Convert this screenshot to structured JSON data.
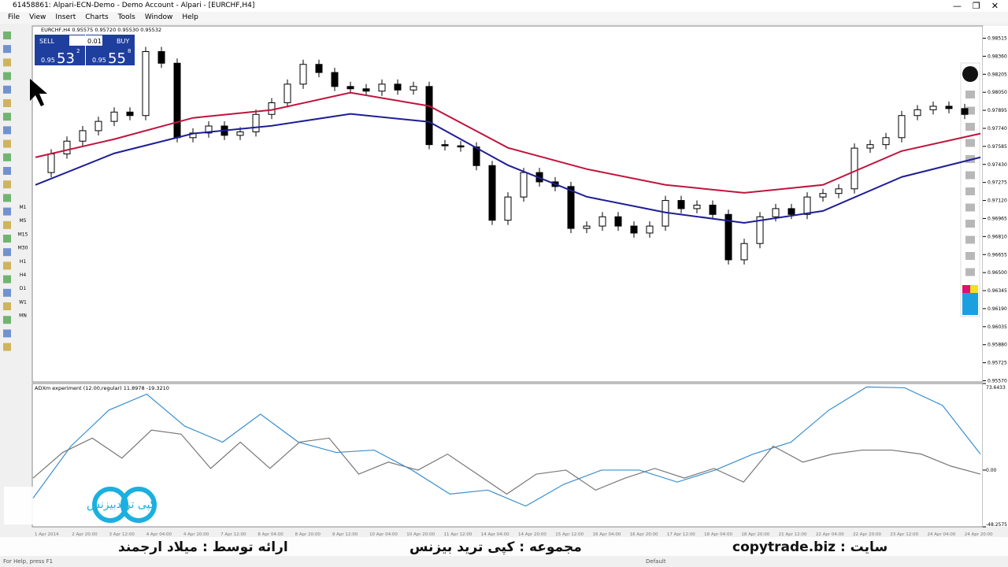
{
  "window_title": "61458861: Alpari-ECN-Demo - Demo Account - Alpari - [EURCHF,H4]",
  "menu": [
    "File",
    "View",
    "Insert",
    "Charts",
    "Tools",
    "Window",
    "Help"
  ],
  "timeframes": [
    "M1",
    "M5",
    "M15",
    "M30",
    "H1",
    "H4",
    "D1",
    "W1",
    "MN"
  ],
  "trade_panel": {
    "sell": "SELL",
    "buy": "BUY",
    "lot": "0.01",
    "sell_prefix": "0.95",
    "sell_big": "53",
    "sell_small": "2",
    "buy_prefix": "0.95",
    "buy_big": "55",
    "buy_small": "8"
  },
  "chart": {
    "type": "candlestick",
    "label": "EURCHF,H4  0.95575 0.95720 0.95530 0.95532",
    "ylim": [
      0.9556,
      0.9862
    ],
    "yticks": [
      {
        "value": 0.98515,
        "label": "0.98515"
      },
      {
        "value": 0.9836,
        "label": "0.98360"
      },
      {
        "value": 0.98205,
        "label": "0.98205"
      },
      {
        "value": 0.9805,
        "label": "0.98050"
      },
      {
        "value": 0.97895,
        "label": "0.97895"
      },
      {
        "value": 0.9774,
        "label": "0.97740"
      },
      {
        "value": 0.97585,
        "label": "0.97585"
      },
      {
        "value": 0.9743,
        "label": "0.97430"
      },
      {
        "value": 0.97275,
        "label": "0.97275"
      },
      {
        "value": 0.9712,
        "label": "0.97120"
      },
      {
        "value": 0.96965,
        "label": "0.96965"
      },
      {
        "value": 0.9681,
        "label": "0.96810"
      },
      {
        "value": 0.96655,
        "label": "0.96655"
      },
      {
        "value": 0.965,
        "label": "0.96500"
      },
      {
        "value": 0.96345,
        "label": "0.96345"
      },
      {
        "value": 0.9619,
        "label": "0.96190"
      },
      {
        "value": 0.96035,
        "label": "0.96035"
      },
      {
        "value": 0.9588,
        "label": "0.95880"
      },
      {
        "value": 0.95725,
        "label": "0.95725"
      },
      {
        "value": 0.9557,
        "label": "0.95570"
      }
    ],
    "close": [
      0.9736,
      0.9752,
      0.9763,
      0.9772,
      0.978,
      0.9788,
      0.9785,
      0.984,
      0.983,
      0.9766,
      0.977,
      0.9776,
      0.9768,
      0.9771,
      0.9786,
      0.9796,
      0.9812,
      0.9829,
      0.9822,
      0.981,
      0.9808,
      0.9806,
      0.9812,
      0.9807,
      0.981,
      0.976,
      0.9759,
      0.9758,
      0.9742,
      0.9695,
      0.9715,
      0.9736,
      0.9728,
      0.9724,
      0.9688,
      0.969,
      0.9698,
      0.969,
      0.9684,
      0.969,
      0.9712,
      0.9705,
      0.9708,
      0.97,
      0.9661,
      0.9675,
      0.9698,
      0.9705,
      0.97,
      0.9715,
      0.9718,
      0.9722,
      0.9757,
      0.976,
      0.9766,
      0.9785,
      0.979,
      0.9793,
      0.9791,
      0.9786
    ],
    "series": [
      {
        "color": "#c0143c",
        "values": [
          0.97491,
          0.97647,
          0.9783,
          0.97898,
          0.98047,
          0.97932,
          0.97573,
          0.9739,
          0.97254,
          0.97186,
          0.97254,
          0.97545,
          0.97695
        ]
      },
      {
        "color": "#1e1e96",
        "values": [
          0.97254,
          0.97525,
          0.97695,
          0.97762,
          0.97864,
          0.97796,
          0.97423,
          0.97152,
          0.97017,
          0.96928,
          0.9703,
          0.97322,
          0.97491
        ]
      }
    ],
    "dates": [
      "1 Apr 2014",
      "2 Apr 20:00",
      "3 Apr 12:00",
      "4 Apr 04:00",
      "4 Apr 20:00",
      "7 Apr 12:00",
      "8 Apr 04:00",
      "8 Apr 20:00",
      "9 Apr 12:00",
      "10 Apr 04:00",
      "10 Apr 20:00",
      "11 Apr 12:00",
      "14 Apr 04:00",
      "14 Apr 20:00",
      "15 Apr 12:00",
      "16 Apr 04:00",
      "16 Apr 20:00",
      "17 Apr 12:00",
      "18 Apr 04:00",
      "18 Apr 20:00",
      "21 Apr 12:00",
      "22 Apr 04:00",
      "22 Apr 20:00",
      "23 Apr 12:00",
      "24 Apr 04:00",
      "24 Apr 20:00"
    ]
  },
  "indicator": {
    "type": "line",
    "label": "ADXm experiment (12.00,regular) 11.8978 -19.3210",
    "ylim": [
      -48.2575,
      73.6433
    ],
    "yticks": [
      {
        "value": 73.6433,
        "label": "73.6433"
      },
      {
        "value": 0,
        "label": "0.00"
      },
      {
        "value": -48.2575,
        "label": "-48.2575"
      }
    ],
    "series": [
      {
        "color": "#3a8fd0",
        "values": [
          -23.8,
          20.4,
          51,
          64.6,
          37.4,
          23.8,
          47.6,
          23.8,
          15,
          17,
          0,
          -20.4,
          -17,
          -30.6,
          -12.2,
          0,
          0,
          -10.2,
          0,
          13.6,
          23.8,
          51,
          70.7,
          70,
          55,
          13.6
        ]
      },
      {
        "color": "#777777",
        "values": [
          -6.8,
          15,
          27.2,
          10.2,
          34,
          30.6,
          1.4,
          23.8,
          1.4,
          23.8,
          27.2,
          -3.4,
          6.8,
          0,
          13.6,
          -3.4,
          -20.4,
          -3.4,
          0,
          -17,
          -6.8,
          1.4,
          -6.8,
          1.4,
          -10.2,
          20.4,
          6.8,
          13.6,
          17,
          17,
          13.6,
          3.4,
          -3.4
        ]
      }
    ]
  },
  "captions": {
    "site": "سایت : copytrade.biz",
    "collection": "مجموعه : کپی ترید بیزنس",
    "presenter": "ارائه توسط : میلاد ارجمند",
    "logo": "کپی تریدبیزنس"
  },
  "status": {
    "help": "For Help, press F1",
    "profile": "Default"
  }
}
